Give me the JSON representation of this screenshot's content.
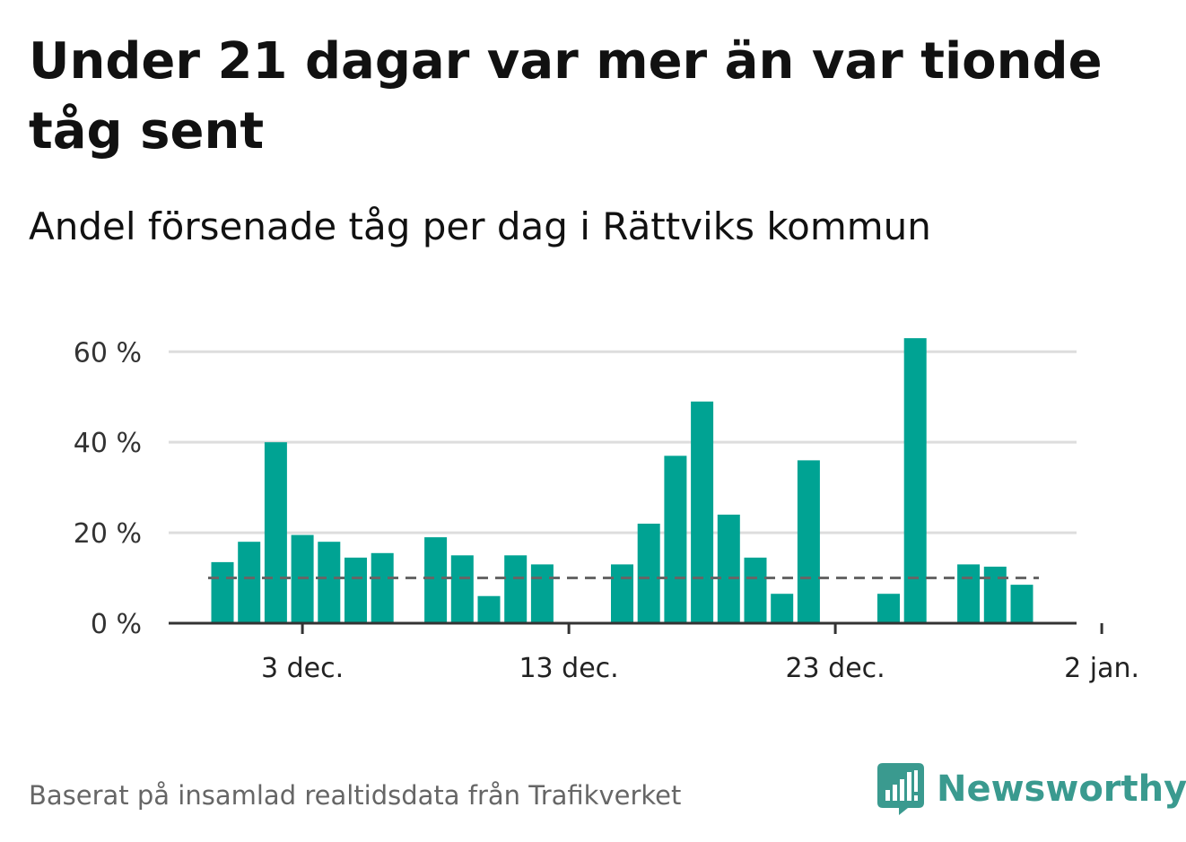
{
  "header": {
    "title": "Under 21 dagar var mer än var tionde tåg sent",
    "subtitle": "Andel försenade tåg per dag i Rättviks kommun"
  },
  "footer": {
    "source": "Baserat på insamlad realtidsdata från Trafikverket",
    "brand": "Newsworthy"
  },
  "colors": {
    "bar": "#00a393",
    "grid": "#dddddd",
    "axis": "#333333",
    "reference_line": "#666666",
    "brand": "#3a9a8f"
  },
  "icons": {
    "brand_logo": "bar-chart-speech-bubble-icon"
  },
  "chart_data": {
    "type": "bar",
    "title": "Andel försenade tåg per dag i Rättviks kommun",
    "xlabel": "",
    "ylabel": "",
    "x": [
      "2023-11-30",
      "2023-12-01",
      "2023-12-02",
      "2023-12-03",
      "2023-12-04",
      "2023-12-05",
      "2023-12-06",
      "2023-12-07",
      "2023-12-08",
      "2023-12-09",
      "2023-12-10",
      "2023-12-11",
      "2023-12-12",
      "2023-12-13",
      "2023-12-14",
      "2023-12-15",
      "2023-12-16",
      "2023-12-17",
      "2023-12-18",
      "2023-12-19",
      "2023-12-20",
      "2023-12-21",
      "2023-12-22",
      "2023-12-23",
      "2023-12-24",
      "2023-12-25",
      "2023-12-26",
      "2023-12-27",
      "2023-12-28",
      "2023-12-29",
      "2023-12-30",
      "2023-12-31"
    ],
    "values": [
      13.5,
      18,
      40,
      19.5,
      18,
      14.5,
      15.5,
      null,
      19,
      15,
      6,
      15,
      13,
      null,
      null,
      13,
      22,
      37,
      49,
      24,
      14.5,
      6.5,
      36,
      null,
      null,
      6.5,
      63,
      null,
      13,
      12.5,
      8.5,
      null
    ],
    "ylim": [
      0,
      66
    ],
    "yticks": [
      0,
      20,
      40,
      60
    ],
    "ytick_labels": [
      "0 %",
      "20 %",
      "40 %",
      "60 %"
    ],
    "xticks": [
      "2023-12-03",
      "2023-12-13",
      "2023-12-23",
      "2024-01-02"
    ],
    "xtick_labels": [
      "3 dec.",
      "13 dec.",
      "23 dec.",
      "2 jan."
    ],
    "reference_line": 10,
    "grid": true
  }
}
